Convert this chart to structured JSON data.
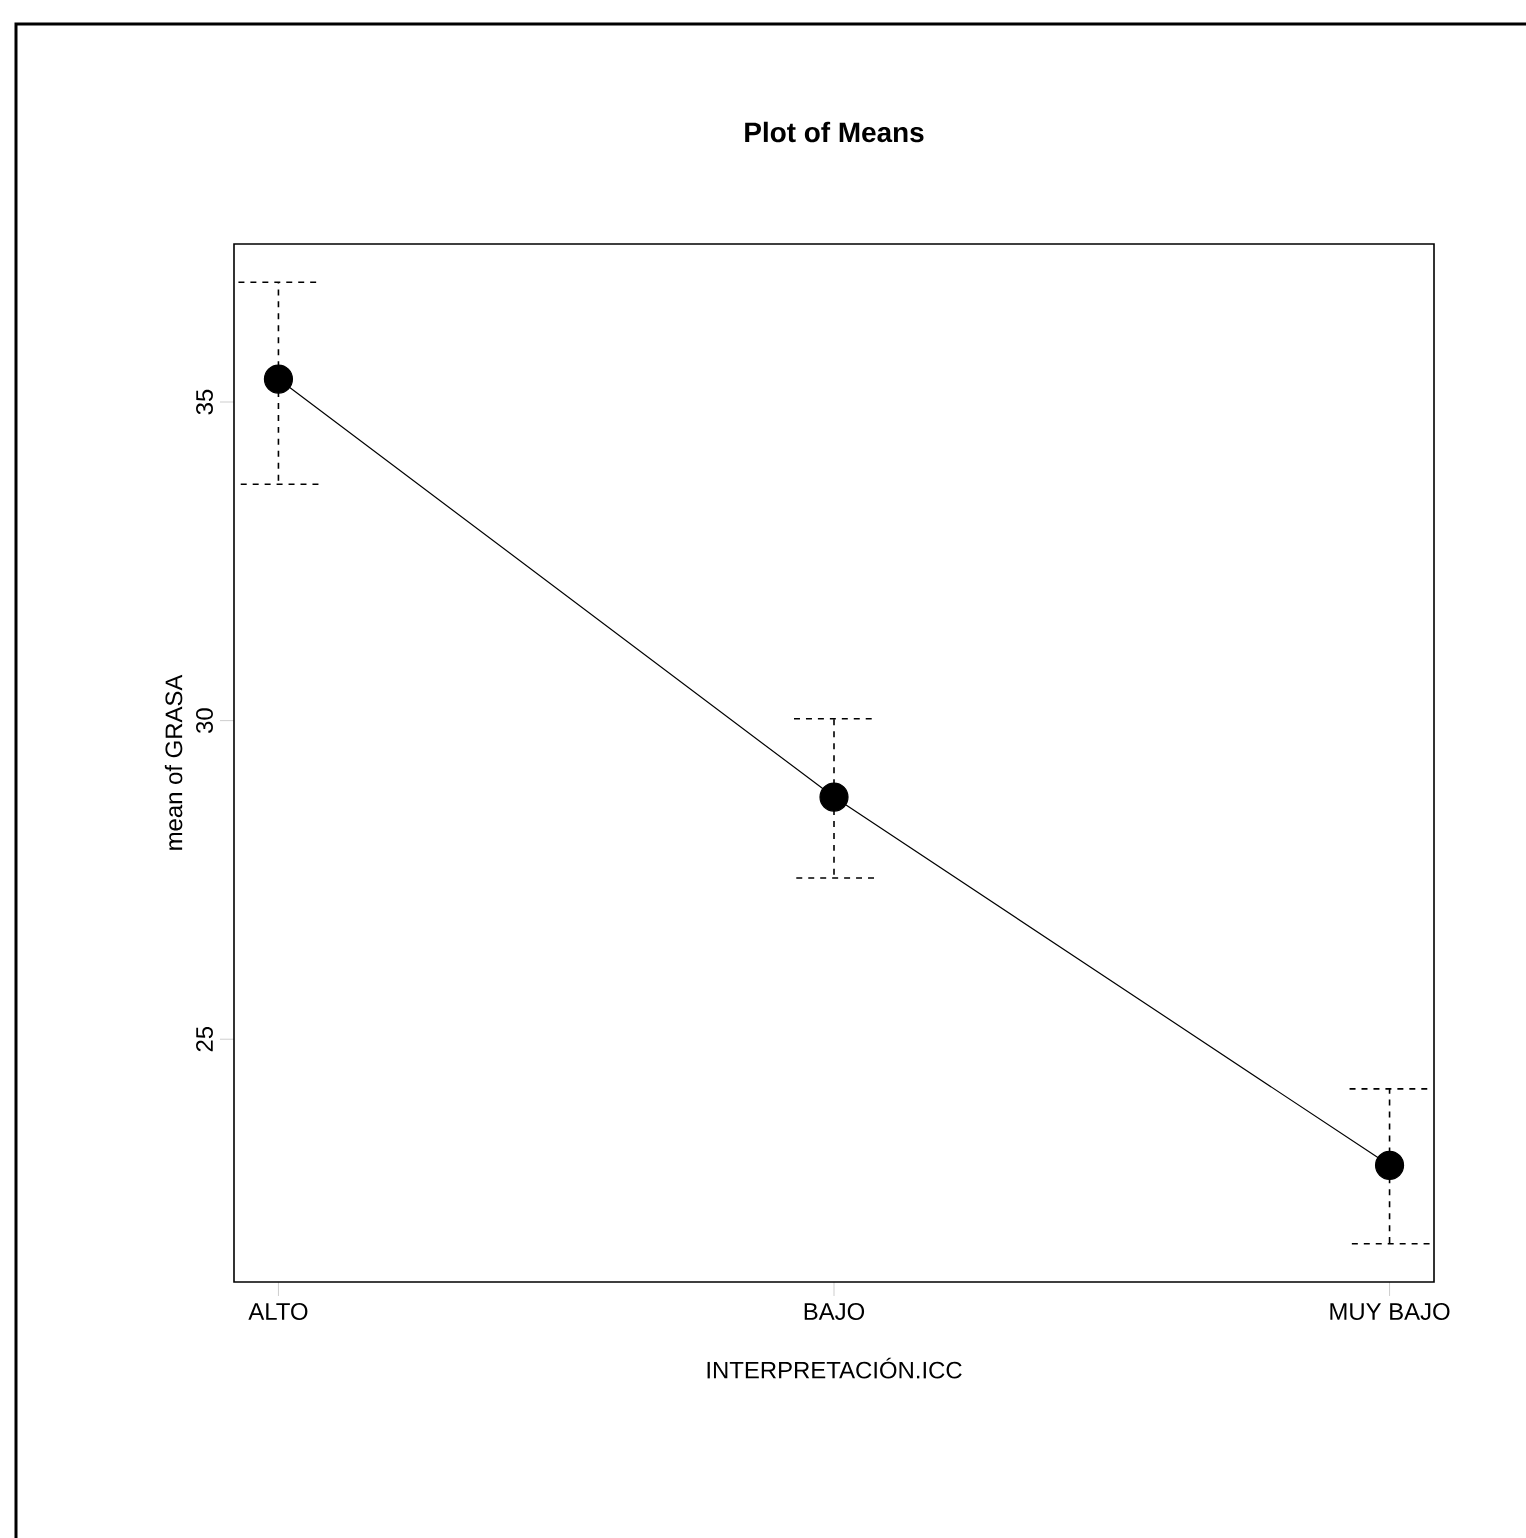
{
  "chart_data": {
    "type": "line",
    "title": "Plot of Means",
    "xlabel": "INTERPRETACIÓN.ICC",
    "ylabel": "mean of GRASA",
    "categories": [
      "ALTO",
      "BAJO",
      "MUY BAJO"
    ],
    "values": [
      35.36,
      28.8,
      23.02
    ],
    "errors": [
      [
        33.71,
        36.88
      ],
      [
        27.53,
        30.03
      ],
      [
        21.79,
        24.22
      ]
    ],
    "color": "#000000",
    "marker": "circle",
    "line_style": "solid",
    "ylim": [
      21.19,
      37.48
    ],
    "yticks": [
      25,
      30,
      35
    ],
    "grid": false
  }
}
